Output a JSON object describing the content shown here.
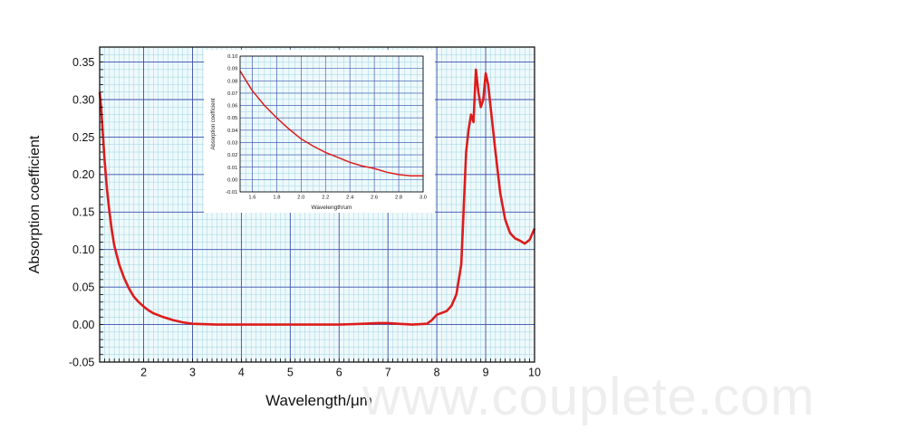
{
  "watermark": "www.couplete.com",
  "colors": {
    "series": "#dd1c1c",
    "gridMajor": "#3b4fb0",
    "gridMinor": "#9fd3e0",
    "plotBg": "#eef9fb"
  },
  "chart_data": [
    {
      "type": "line",
      "title": "",
      "xlabel": "Wavelength/μm",
      "ylabel": "Absorption coefficient",
      "xlim": [
        1.1,
        10
      ],
      "ylim": [
        -0.05,
        0.37
      ],
      "xticks": [
        "2",
        "3",
        "4",
        "5",
        "6",
        "7",
        "8",
        "9",
        "10"
      ],
      "yticks": [
        "0.35",
        "0.30",
        "0.25",
        "0.20",
        "0.15",
        "0.10",
        "0.05",
        "0.00",
        "-0.05"
      ],
      "grid": true,
      "series": [
        {
          "x": [
            1.1,
            1.13,
            1.16,
            1.2,
            1.25,
            1.3,
            1.35,
            1.4,
            1.5,
            1.6,
            1.7,
            1.8,
            1.9,
            2.0,
            2.1,
            2.2,
            2.4,
            2.6,
            2.8,
            3.0,
            3.5,
            4.0,
            5.0,
            6.0,
            6.5,
            6.8,
            7.0,
            7.2,
            7.5,
            7.8,
            7.9,
            8.0,
            8.2,
            8.3,
            8.4,
            8.5,
            8.6,
            8.65,
            8.7,
            8.75,
            8.8,
            8.85,
            8.9,
            8.95,
            9.0,
            9.05,
            9.1,
            9.2,
            9.3,
            9.4,
            9.5,
            9.6,
            9.7,
            9.8,
            9.9,
            10.0
          ],
          "y": [
            0.31,
            0.29,
            0.26,
            0.22,
            0.18,
            0.15,
            0.125,
            0.105,
            0.08,
            0.062,
            0.048,
            0.037,
            0.03,
            0.024,
            0.019,
            0.015,
            0.01,
            0.006,
            0.003,
            0.001,
            0.0,
            0.0,
            0.0,
            0.0,
            0.001,
            0.002,
            0.002,
            0.001,
            0.0,
            0.001,
            0.006,
            0.013,
            0.018,
            0.025,
            0.04,
            0.08,
            0.23,
            0.26,
            0.28,
            0.27,
            0.34,
            0.31,
            0.29,
            0.3,
            0.335,
            0.32,
            0.29,
            0.23,
            0.175,
            0.14,
            0.122,
            0.115,
            0.112,
            0.108,
            0.113,
            0.128
          ]
        }
      ]
    },
    {
      "type": "line",
      "title": "",
      "xlabel": "Wavelength/um",
      "ylabel": "Absorption coefficient",
      "xlim": [
        1.5,
        3.0
      ],
      "ylim": [
        -0.01,
        0.1
      ],
      "xticks": [
        "1.6",
        "1.8",
        "2.0",
        "2.2",
        "2.4",
        "2.6",
        "2.8",
        "3.0"
      ],
      "yticks": [
        "0.10",
        "0.09",
        "0.08",
        "0.07",
        "0.06",
        "0.05",
        "0.04",
        "0.03",
        "0.02",
        "0.01",
        "0.00",
        "-0.01"
      ],
      "grid": true,
      "series": [
        {
          "x": [
            1.5,
            1.55,
            1.6,
            1.7,
            1.8,
            1.9,
            2.0,
            2.1,
            2.2,
            2.3,
            2.4,
            2.5,
            2.6,
            2.7,
            2.8,
            2.9,
            3.0
          ],
          "y": [
            0.088,
            0.08,
            0.072,
            0.06,
            0.05,
            0.041,
            0.033,
            0.027,
            0.022,
            0.018,
            0.014,
            0.011,
            0.009,
            0.006,
            0.004,
            0.003,
            0.003
          ]
        }
      ]
    }
  ]
}
